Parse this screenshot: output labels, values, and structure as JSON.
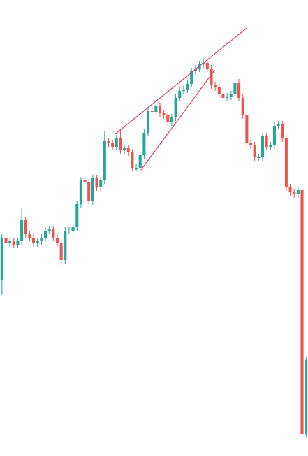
{
  "chart_data": {
    "type": "candlestick",
    "up_color": "#26a69a",
    "down_color": "#ef5350",
    "xlim": [
      -0.5,
      77.5
    ],
    "ylim": [
      0,
      652
    ],
    "series": [
      {
        "open": [
          252,
          312,
          304,
          307,
          302,
          307,
          337,
          317,
          312,
          304,
          307,
          312,
          322,
          324,
          312,
          304,
          280,
          322,
          322,
          327,
          360,
          394,
          392,
          364,
          397,
          384,
          394,
          450,
          447,
          442,
          454,
          437,
          440,
          434,
          412,
          412,
          430,
          462,
          494,
          492,
          500,
          490,
          487,
          477,
          484,
          512,
          522,
          524,
          532,
          550,
          554,
          560,
          562,
          554,
          530,
          527,
          517,
          512,
          514,
          517,
          534,
          512,
          487,
          447,
          444,
          427,
          427,
          457,
          442,
          444,
          472,
          474,
          454,
          384,
          377,
          374,
          380,
          32
        ],
        "close": [
          312,
          304,
          307,
          302,
          307,
          337,
          317,
          312,
          304,
          307,
          312,
          322,
          324,
          312,
          304,
          280,
          322,
          322,
          327,
          360,
          394,
          392,
          364,
          397,
          384,
          394,
          450,
          447,
          442,
          454,
          437,
          440,
          434,
          412,
          412,
          430,
          462,
          494,
          492,
          500,
          490,
          487,
          477,
          484,
          512,
          522,
          524,
          532,
          550,
          554,
          560,
          562,
          554,
          530,
          527,
          517,
          512,
          514,
          517,
          534,
          512,
          487,
          447,
          444,
          427,
          427,
          457,
          442,
          444,
          472,
          474,
          454,
          384,
          377,
          374,
          380,
          32,
          137
        ],
        "high": [
          317,
          317,
          312,
          312,
          312,
          354,
          342,
          322,
          317,
          312,
          317,
          327,
          329,
          329,
          317,
          309,
          327,
          327,
          332,
          365,
          399,
          399,
          397,
          402,
          402,
          399,
          464,
          455,
          452,
          459,
          467,
          445,
          445,
          439,
          417,
          435,
          467,
          499,
          499,
          505,
          505,
          495,
          492,
          489,
          517,
          527,
          529,
          537,
          555,
          559,
          565,
          567,
          567,
          559,
          535,
          532,
          522,
          519,
          522,
          539,
          539,
          517,
          492,
          452,
          449,
          432,
          462,
          462,
          449,
          477,
          479,
          479,
          459,
          389,
          382,
          385,
          385,
          142
        ],
        "low": [
          230,
          299,
          299,
          297,
          297,
          302,
          312,
          307,
          299,
          299,
          302,
          307,
          317,
          307,
          299,
          272,
          275,
          317,
          317,
          322,
          355,
          387,
          359,
          359,
          379,
          379,
          389,
          442,
          437,
          437,
          432,
          432,
          429,
          407,
          407,
          407,
          425,
          457,
          487,
          487,
          485,
          482,
          472,
          472,
          479,
          507,
          517,
          519,
          527,
          545,
          549,
          555,
          549,
          525,
          522,
          512,
          507,
          507,
          509,
          512,
          507,
          482,
          442,
          439,
          422,
          422,
          422,
          437,
          437,
          439,
          467,
          449,
          379,
          372,
          369,
          369,
          27,
          27
        ]
      }
    ],
    "trendline_color": "#e0406a",
    "trendlines": [
      {
        "x": [
          28.6,
          62
        ],
        "y": [
          460,
          612
        ]
      },
      {
        "x": [
          35.2,
          53.9
        ],
        "y": [
          409,
          552
        ]
      }
    ]
  }
}
